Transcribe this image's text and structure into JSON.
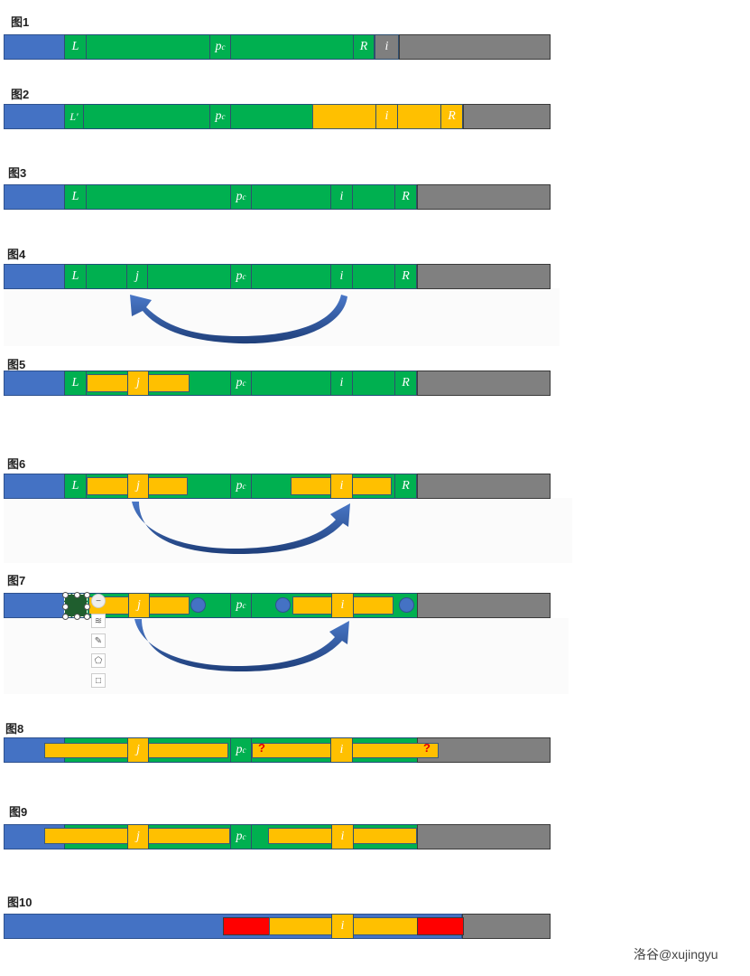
{
  "figures": [
    {
      "label": "图1"
    },
    {
      "label": "图2"
    },
    {
      "label": "图3"
    },
    {
      "label": "图4"
    },
    {
      "label": "图5"
    },
    {
      "label": "图6"
    },
    {
      "label": "图7"
    },
    {
      "label": "图8"
    },
    {
      "label": "图9"
    },
    {
      "label": "图10"
    }
  ],
  "symbols": {
    "L": "L",
    "L_prime": "L'",
    "R": "R",
    "i": "i",
    "j": "j",
    "p": "p",
    "c": "c",
    "question": "?"
  },
  "watermark": "洛谷@xujingyu",
  "colors": {
    "blue": "#4472c4",
    "green": "#00b050",
    "grey": "#808080",
    "yellow": "#ffc000",
    "red": "#ff0000",
    "arrow": "#2f528f"
  },
  "toolbar_icons": [
    "minus-icon",
    "layers-icon",
    "pen-icon",
    "pentagon-icon",
    "square-icon"
  ]
}
